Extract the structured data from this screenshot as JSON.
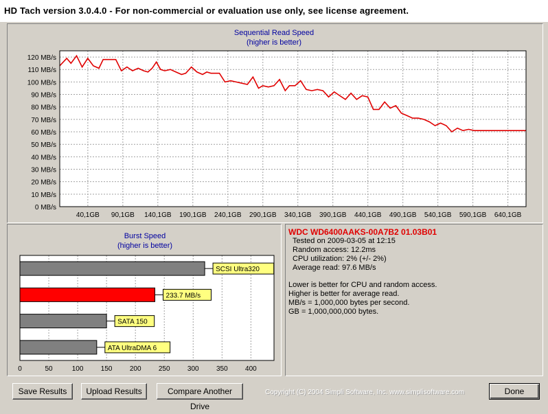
{
  "window": {
    "title": "HD Tach version 3.0.4.0  - For non-commercial or evaluation use only, see license agreement."
  },
  "chart_data": [
    {
      "type": "line",
      "title": "Sequential Read Speed",
      "subtitle": "(higher is better)",
      "xlabel": "",
      "ylabel": "",
      "ylim": [
        0,
        125
      ],
      "xlim": [
        0,
        666
      ],
      "grid": true,
      "y_ticks": [
        "0 MB/s",
        "10 MB/s",
        "20 MB/s",
        "30 MB/s",
        "40 MB/s",
        "50 MB/s",
        "60 MB/s",
        "70 MB/s",
        "80 MB/s",
        "90 MB/s",
        "100 MB/s",
        "110 MB/s",
        "120 MB/s"
      ],
      "x_ticks": [
        "40,1GB",
        "90,1GB",
        "140,1GB",
        "190,1GB",
        "240,1GB",
        "290,1GB",
        "340,1GB",
        "390,1GB",
        "440,1GB",
        "490,1GB",
        "540,1GB",
        "590,1GB",
        "640,1GB"
      ],
      "line_color": "#e00000",
      "series": [
        {
          "x": [
            0,
            10,
            16,
            24,
            32,
            40,
            48,
            56,
            62,
            68,
            74,
            80,
            88,
            96,
            104,
            112,
            120,
            126,
            132,
            138,
            144,
            150,
            158,
            166,
            174,
            180,
            188,
            196,
            204,
            210,
            216,
            222,
            228,
            236,
            244,
            252,
            260,
            268,
            276,
            284,
            290,
            298,
            306,
            314,
            322,
            328,
            336,
            344,
            352,
            360,
            368,
            376,
            384,
            392,
            400,
            408,
            416,
            424,
            432,
            440,
            448,
            456,
            464,
            472,
            480,
            488,
            496,
            504,
            512,
            520,
            528,
            536,
            544,
            552,
            560,
            568,
            576,
            584,
            592,
            600,
            608,
            616,
            624,
            630,
            636,
            642,
            648,
            654,
            660,
            666
          ],
          "y": [
            113,
            119,
            115,
            121,
            112,
            119,
            113,
            111,
            118,
            118,
            118,
            118,
            109,
            112,
            109,
            111,
            109,
            108,
            111,
            116,
            110,
            109,
            110,
            108,
            106,
            107,
            112,
            108,
            106,
            108,
            107,
            107,
            107,
            100,
            101,
            100,
            99,
            98,
            104,
            95,
            97,
            96,
            97,
            102,
            93,
            97,
            97,
            101,
            94,
            93,
            94,
            93,
            88,
            92,
            89,
            86,
            91,
            86,
            89,
            88,
            78,
            78,
            84,
            79,
            81,
            75,
            73,
            71,
            71,
            70,
            68,
            65,
            67,
            65,
            60,
            63,
            61,
            62,
            61,
            61,
            61,
            61,
            61,
            61,
            61,
            61,
            61,
            61,
            61,
            61
          ]
        }
      ]
    },
    {
      "type": "bar",
      "orientation": "horizontal",
      "title": "Burst Speed",
      "subtitle": "(higher is better)",
      "xlim": [
        0,
        440
      ],
      "x_ticks": [
        "0",
        "50",
        "100",
        "150",
        "200",
        "250",
        "300",
        "350",
        "400"
      ],
      "grid": true,
      "categories": [
        "SCSI Ultra320",
        "233.7 MB/s",
        "SATA 150",
        "ATA UltraDMA 6"
      ],
      "values": [
        320,
        233.7,
        150,
        133
      ],
      "colors": [
        "#808080",
        "#ff0000",
        "#808080",
        "#808080"
      ],
      "label_bg": "#ffff80"
    }
  ],
  "info": {
    "drive": "WDC WD6400AAKS-00A7B2 01.03B01",
    "tested_on": "Tested on 2009-03-05 at 12:15",
    "random_access": "Random access: 12.2ms",
    "cpu": "CPU utilization: 2% (+/- 2%)",
    "average": "Average read: 97.6 MB/s",
    "note1": "Lower is better for CPU and random access.",
    "note2": "Higher is better for average read.",
    "note3": "MB/s = 1,000,000 bytes per second.",
    "note4": "GB = 1,000,000,000 bytes."
  },
  "buttons": {
    "save": "Save Results",
    "upload": "Upload Results",
    "compare": "Compare Another Drive",
    "done": "Done"
  },
  "copyright": "Copyright (C) 2004 Simpli Software, Inc. www.simplisoftware.com"
}
